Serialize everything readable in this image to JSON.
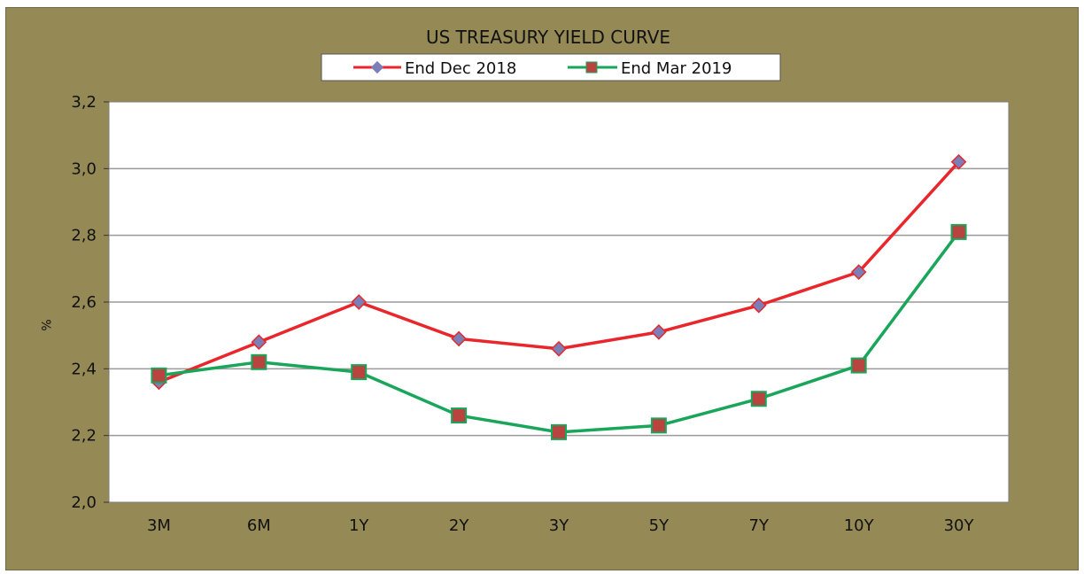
{
  "chart_data": {
    "type": "line",
    "title": "US TREASURY YIELD CURVE",
    "xlabel": "",
    "ylabel": "%",
    "categories": [
      "3M",
      "6M",
      "1Y",
      "2Y",
      "3Y",
      "5Y",
      "7Y",
      "10Y",
      "30Y"
    ],
    "ylim": [
      2.0,
      3.2
    ],
    "yticks": [
      "2,0",
      "2,2",
      "2,4",
      "2,6",
      "2,8",
      "3,0",
      "3,2"
    ],
    "grid": true,
    "legend_position": "top-center",
    "series": [
      {
        "name": "End Dec 2018",
        "color": "#e8262c",
        "marker": "diamond",
        "marker_color": "#7a7fb8",
        "values": [
          2.36,
          2.48,
          2.6,
          2.49,
          2.46,
          2.51,
          2.59,
          2.69,
          3.02
        ]
      },
      {
        "name": "End Mar 2019",
        "color": "#1aa65a",
        "marker": "square",
        "marker_color": "#b9433f",
        "values": [
          2.38,
          2.42,
          2.39,
          2.26,
          2.21,
          2.23,
          2.31,
          2.41,
          2.81
        ]
      }
    ],
    "background_color": "#958a55",
    "plot_background": "#ffffff",
    "gridline_color": "#9a9a9a"
  }
}
